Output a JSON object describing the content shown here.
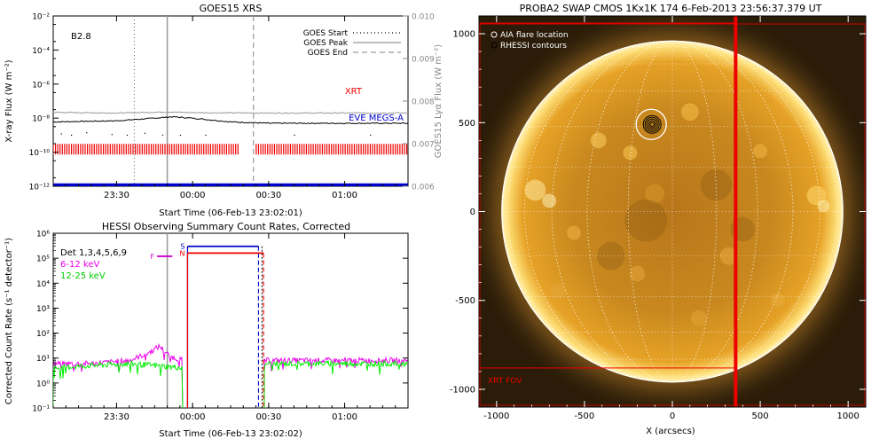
{
  "chart_data": [
    {
      "type": "line",
      "title": "GOES15 XRS",
      "xlabel": "Start Time (06-Feb-13 23:02:01)",
      "ylabel": "X-ray Flux (W m⁻²)",
      "ylabel_right": "GOES15 Lyα Flux (W m⁻²)",
      "annotation": "B2.8",
      "xlim": [
        "23:05",
        "01:25"
      ],
      "x_ticks": [
        "23:30",
        "00:00",
        "00:30",
        "01:00"
      ],
      "ylim": [
        1e-12,
        0.01
      ],
      "yscale": "log",
      "y_ticks": [
        "10⁻¹²",
        "10⁻¹⁰",
        "10⁻⁸",
        "10⁻⁶",
        "10⁻⁴",
        "10⁻²"
      ],
      "ylim_right": [
        0.006,
        0.01
      ],
      "y_ticks_right": [
        "0.006",
        "0.007",
        "0.008",
        "0.009",
        "0.010"
      ],
      "legend": {
        "position": "top-right",
        "entries": [
          "GOES Start",
          "GOES Peak",
          "GOES End"
        ]
      },
      "event_lines": {
        "start": "23:37",
        "peak": "23:50",
        "end": "00:24"
      },
      "series": [
        {
          "name": "",
          "color": "#000000",
          "x": [
            "23:05",
            "23:30",
            "23:45",
            "23:52",
            "00:00",
            "00:15",
            "00:30",
            "01:00",
            "01:25"
          ],
          "values": [
            6e-09,
            7e-09,
            1e-08,
            1.2e-08,
            1e-08,
            6e-09,
            5e-09,
            5e-09,
            5e-09
          ]
        },
        {
          "name": "",
          "color": "#999999",
          "x": [
            "23:05",
            "23:30",
            "23:50",
            "00:00",
            "00:30",
            "01:00",
            "01:25"
          ],
          "values": [
            2.2e-08,
            2e-08,
            2.3e-08,
            2.1e-08,
            2e-08,
            2e-08,
            2e-08
          ]
        },
        {
          "name": "",
          "color": "#000000",
          "style": "dots",
          "x": [
            "23:08",
            "23:12",
            "23:18",
            "23:28",
            "23:34",
            "23:41",
            "23:48",
            "23:55",
            "00:05",
            "00:40",
            "01:10"
          ],
          "values": [
            1.2e-09,
            1e-09,
            1.4e-09,
            1.1e-09,
            1e-09,
            1.3e-09,
            1e-09,
            1e-09,
            1e-09,
            1e-09,
            1e-09
          ]
        }
      ],
      "bands": [
        {
          "name": "XRT",
          "color": "#ee0000",
          "value": 1.5e-10,
          "gaps": [
            [
              "00:18",
              "00:25"
            ]
          ]
        },
        {
          "name": "EVE MEGS-A",
          "color": "#0000cc",
          "value": 1.2e-12
        }
      ],
      "grid": false
    },
    {
      "type": "line",
      "title": "HESSI Observing Summary Count Rates, Corrected",
      "xlabel": "Start Time (06-Feb-13 23:02:02)",
      "ylabel": "Corrected Count Rate (s⁻¹ detector⁻¹)",
      "annotation": "Det 1,3,4,5,6,9",
      "xlim": [
        "23:05",
        "01:25"
      ],
      "x_ticks": [
        "23:30",
        "00:00",
        "00:30",
        "01:00"
      ],
      "ylim": [
        0.1,
        1000000.0
      ],
      "yscale": "log",
      "y_ticks": [
        "10⁻¹",
        "10⁰",
        "10¹",
        "10²",
        "10³",
        "10⁴",
        "10⁵",
        "10⁶"
      ],
      "legend": {
        "position": "top-left",
        "entries": [
          "6-12 keV",
          "12-25 keV"
        ]
      },
      "vertical_line": "23:50",
      "flags": [
        {
          "label": "F",
          "color": "#cc00cc",
          "from": "23:46",
          "to": "23:52",
          "value": 120000.0
        },
        {
          "label": "S",
          "color": "#0000cc",
          "from": "23:58",
          "to": "00:26",
          "value": 300000.0
        },
        {
          "label": "N",
          "color": "#ee0000",
          "from": "23:58",
          "to": "00:28",
          "value": 160000.0
        }
      ],
      "series": [
        {
          "name": "6-12 keV",
          "color": "#ee00ee",
          "x": [
            "23:05",
            "23:20",
            "23:35",
            "23:42",
            "23:47",
            "23:51",
            "23:56",
            "00:28",
            "00:40",
            "01:00",
            "01:25"
          ],
          "values": [
            6,
            6,
            8,
            15,
            30,
            12,
            8,
            8,
            8,
            8,
            8
          ]
        },
        {
          "name": "12-25 keV",
          "color": "#00ee00",
          "x": [
            "23:05",
            "23:20",
            "23:35",
            "23:45",
            "23:56",
            "00:28",
            "00:40",
            "01:00",
            "01:25"
          ],
          "values": [
            4,
            5,
            6,
            5,
            4,
            6,
            6,
            6,
            6
          ]
        }
      ],
      "grid": false
    },
    {
      "type": "image",
      "title": "PROBA2 SWAP CMOS 1Kx1K 174  6-Feb-2013 23:56:37.379 UT",
      "xlabel": "X (arcsecs)",
      "xlim": [
        -1100,
        1100
      ],
      "ylim": [
        -1100,
        1100
      ],
      "x_ticks": [
        "-1000",
        "-500",
        "0",
        "500",
        "1000"
      ],
      "y_ticks": [
        "-1000",
        "-500",
        "0",
        "500",
        "1000"
      ],
      "solar_radius": 970,
      "legend": {
        "position": "top-left",
        "entries": [
          "AIA flare location",
          "RHESSI contours"
        ]
      },
      "flare_location": {
        "x": -120,
        "y": 490
      },
      "fov_label": "XRT FOV",
      "fov_box": {
        "x0": -1100,
        "x1": 360,
        "y0": -880,
        "y1": 1060
      },
      "fov_edge_x": 360,
      "colors": {
        "fov": "#ee0000",
        "sun": "#e6a21c",
        "background": "#2a1c08"
      }
    }
  ]
}
